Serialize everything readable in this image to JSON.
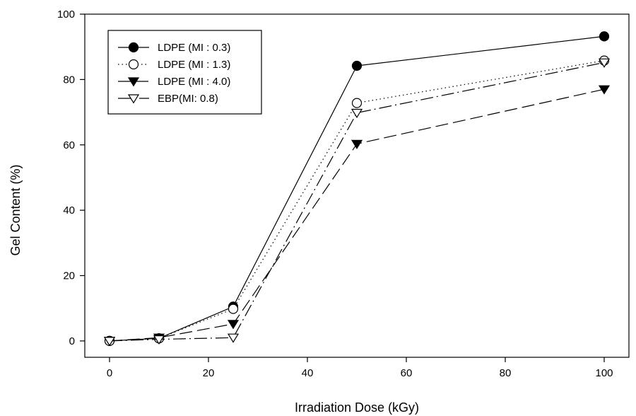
{
  "chart_data": {
    "type": "line",
    "title": "",
    "xlabel": "Irradiation Dose (kGy)",
    "ylabel": "Gel Content (%)",
    "xlim": [
      -5,
      105
    ],
    "ylim": [
      -5,
      100
    ],
    "xticks": [
      0,
      20,
      40,
      60,
      80,
      100
    ],
    "yticks": [
      0,
      20,
      40,
      60,
      80,
      100
    ],
    "grid": false,
    "legend_position": "top-left",
    "x": [
      0,
      10,
      25,
      50,
      100
    ],
    "series": [
      {
        "name": "LDPE (MI : 0.3)",
        "values": [
          0,
          0.8,
          10.5,
          84.2,
          93.2
        ],
        "marker": "filled-circle",
        "line": "solid"
      },
      {
        "name": "LDPE (MI : 1.3)",
        "values": [
          0,
          0.8,
          9.8,
          72.8,
          85.8
        ],
        "marker": "open-circle",
        "line": "dotted"
      },
      {
        "name": "LDPE (MI : 4.0)",
        "values": [
          0,
          1.0,
          5.2,
          60.3,
          77.0
        ],
        "marker": "filled-triangle-down",
        "line": "dashed"
      },
      {
        "name": "EBP(MI: 0.8)",
        "values": [
          0,
          0.5,
          1.0,
          69.8,
          85.2
        ],
        "marker": "open-triangle-down",
        "line": "dash-dot"
      }
    ]
  },
  "colors": {
    "line": "#000000",
    "background": "#ffffff"
  }
}
